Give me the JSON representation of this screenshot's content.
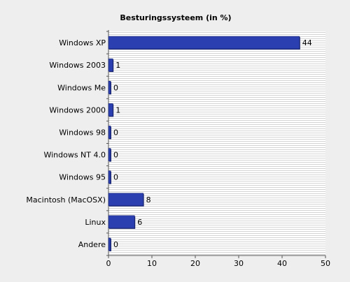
{
  "chart_data": {
    "type": "bar",
    "orientation": "horizontal",
    "title": "Besturingssysteem (in %)",
    "xlabel": "",
    "ylabel": "",
    "categories": [
      "Windows XP",
      "Windows 2003",
      "Windows Me",
      "Windows 2000",
      "Windows 98",
      "Windows NT 4.0",
      "Windows 95",
      "Macintosh (MacOSX)",
      "Linux",
      "Andere"
    ],
    "values": [
      44,
      1,
      0,
      1,
      0,
      0,
      0,
      8,
      6,
      0
    ],
    "data_labels": [
      "44",
      "1",
      "0",
      "1",
      "0",
      "0",
      "0",
      "8",
      "6",
      "0"
    ],
    "xlim": [
      0,
      50
    ],
    "xticks": [
      0,
      10,
      20,
      30,
      40,
      50
    ],
    "grid": "horizontal-stripes",
    "legend": "none",
    "colors": {
      "bar": "#2b3fb0",
      "bar_dark": "#1a2670",
      "background": "#eeeeee",
      "plot_background": "#ffffff",
      "grid": "#d4d4d4",
      "axis": "#555555",
      "text": "#000000"
    }
  }
}
